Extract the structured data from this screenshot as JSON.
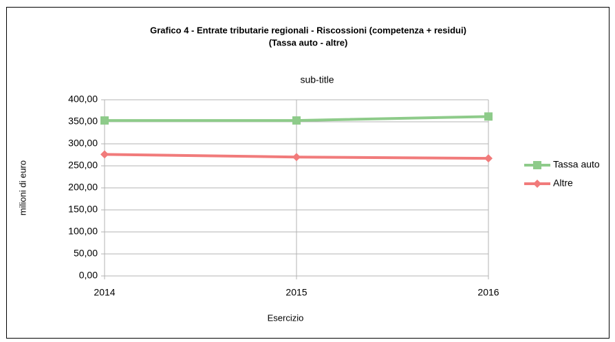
{
  "chart_data": {
    "type": "line",
    "title": [
      "Grafico 4 - Entrate tributarie regionali - Riscossioni (competenza + residui)",
      "(Tassa auto - altre)"
    ],
    "subtitle": "sub-title",
    "x_label": "Esercizio",
    "y_label": "milioni di euro",
    "categories": [
      "2014",
      "2015",
      "2016"
    ],
    "series": [
      {
        "name": "Tassa auto",
        "color": "#8ecb8a",
        "marker": "square",
        "values": [
          353,
          353,
          362
        ]
      },
      {
        "name": "Altre",
        "color": "#f17b7b",
        "marker": "diamond",
        "values": [
          276,
          270,
          267
        ]
      }
    ],
    "ylim": [
      0,
      400
    ],
    "yticks": [
      {
        "value": 0,
        "label": "0,00"
      },
      {
        "value": 50,
        "label": "50,00"
      },
      {
        "value": 100,
        "label": "100,00"
      },
      {
        "value": 150,
        "label": "150,00"
      },
      {
        "value": 200,
        "label": "200,00"
      },
      {
        "value": 250,
        "label": "250,00"
      },
      {
        "value": 300,
        "label": "300,00"
      },
      {
        "value": 350,
        "label": "350,00"
      },
      {
        "value": 400,
        "label": "400,00"
      }
    ],
    "grid": true,
    "legend": "right"
  }
}
